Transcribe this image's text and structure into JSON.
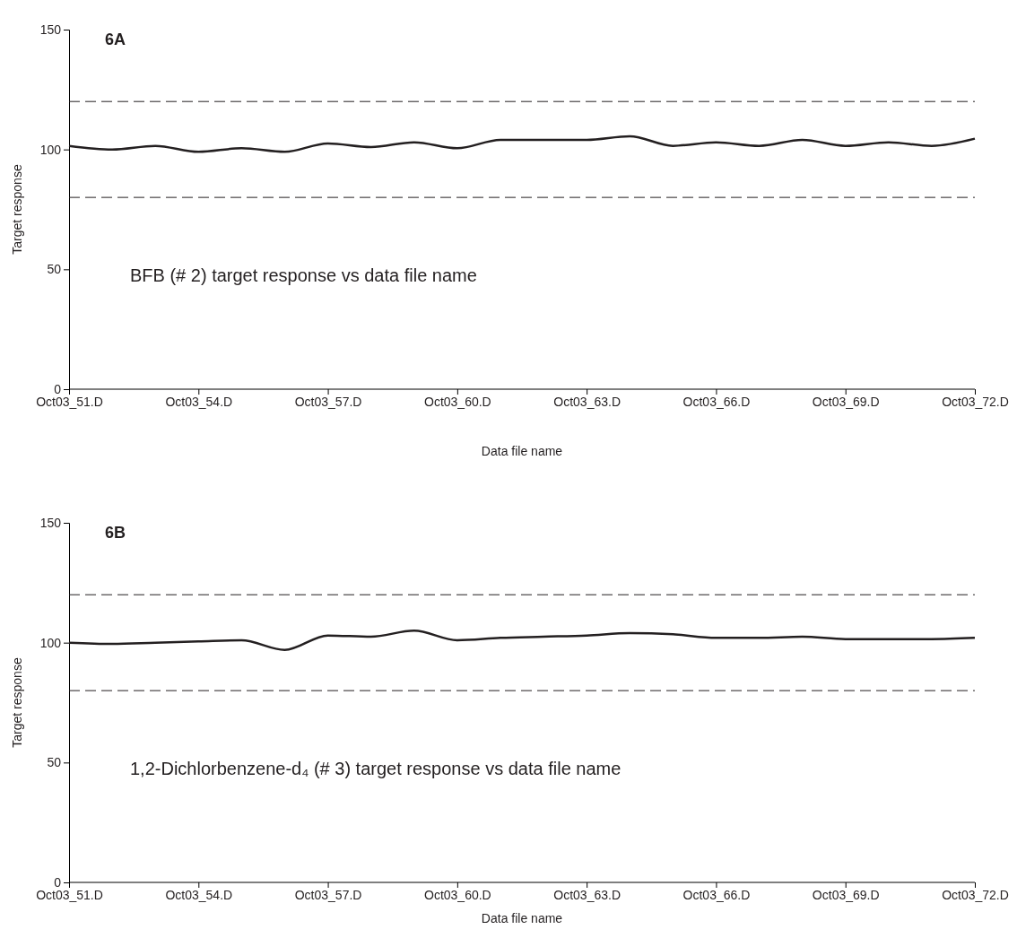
{
  "chart_data": [
    {
      "type": "line",
      "title": "6A",
      "xlabel": "Data file name",
      "ylabel": "Target response",
      "categories": [
        "Oct03_51.D",
        null,
        null,
        "Oct03_54.D",
        null,
        null,
        "Oct03_57.D",
        null,
        null,
        "Oct03_60.D",
        null,
        null,
        "Oct03_63.D",
        null,
        null,
        "Oct03_66.D",
        null,
        null,
        "Oct03_69.D",
        null,
        null,
        "Oct03_72.D"
      ],
      "series": [
        {
          "color": "#231f20",
          "values": [
            101.5,
            100,
            101.5,
            99,
            100.5,
            99,
            102.5,
            101,
            103,
            100.5,
            104,
            104,
            104,
            105.5,
            101.5,
            103,
            101.5,
            104,
            101.5,
            103,
            101.5,
            104.5
          ]
        }
      ],
      "ylim": [
        0,
        150
      ],
      "yticks": [
        0,
        50,
        100,
        150
      ],
      "grid": false,
      "marker": "none",
      "line_style": "solid",
      "ref_lines": [
        {
          "axis": "y",
          "value": 120,
          "color": "#231f20",
          "line_style": "dashed"
        },
        {
          "axis": "y",
          "value": 80,
          "color": "#231f20",
          "line_style": "dashed"
        }
      ],
      "annotations": [
        "BFB (# 2) target response vs data file name"
      ]
    },
    {
      "type": "line",
      "title": "6B",
      "xlabel": "Data file name",
      "ylabel": "Target response",
      "categories": [
        "Oct03_51.D",
        null,
        null,
        "Oct03_54.D",
        null,
        null,
        "Oct03_57.D",
        null,
        null,
        "Oct03_60.D",
        null,
        null,
        "Oct03_63.D",
        null,
        null,
        "Oct03_66.D",
        null,
        null,
        "Oct03_69.D",
        null,
        null,
        "Oct03_72.D"
      ],
      "series": [
        {
          "color": "#231f20",
          "values": [
            100,
            99.5,
            100,
            100.5,
            101,
            97,
            103,
            102.5,
            105,
            101,
            102,
            102.5,
            103,
            104,
            103.5,
            102,
            102,
            102.5,
            101.5,
            101.5,
            101.5,
            102
          ]
        }
      ],
      "ylim": [
        0,
        150
      ],
      "yticks": [
        0,
        50,
        100,
        150
      ],
      "grid": false,
      "marker": "none",
      "line_style": "solid",
      "ref_lines": [
        {
          "axis": "y",
          "value": 120,
          "color": "#231f20",
          "line_style": "dashed"
        },
        {
          "axis": "y",
          "value": 80,
          "color": "#231f20",
          "line_style": "dashed"
        }
      ],
      "annotations": [
        "1,2-Dichlorbenzene-d₄ (# 3) target response vs data file name"
      ]
    }
  ]
}
